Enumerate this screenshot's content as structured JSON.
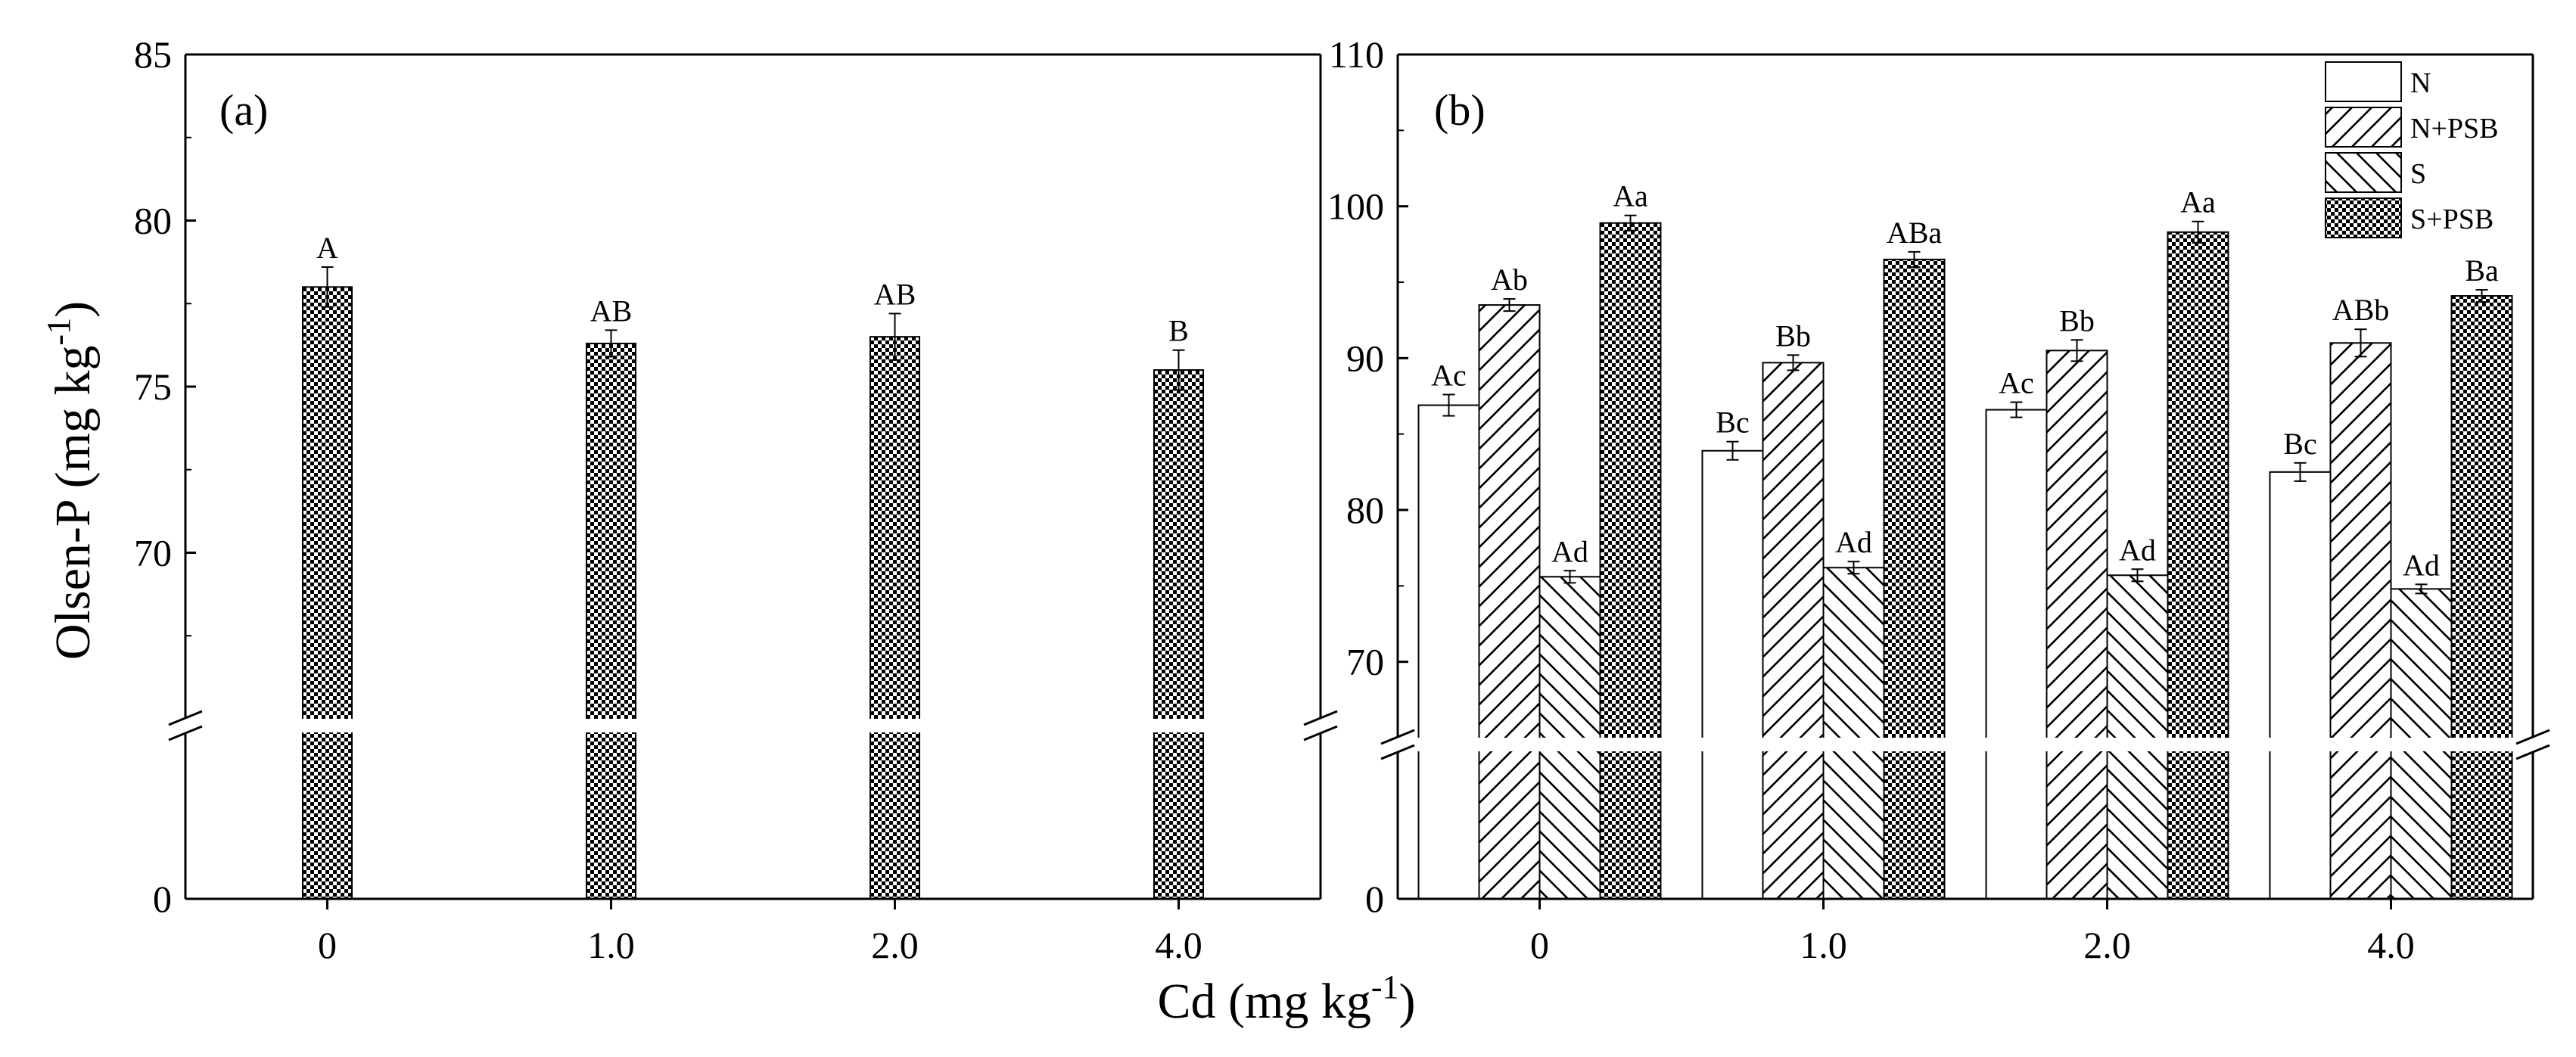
{
  "chart_data": [
    {
      "panel": "(a)",
      "type": "bar",
      "title": "",
      "xlabel": "Cd (mg kg-1)",
      "ylabel": "Olsen-P (mg kg-1)",
      "categories": [
        "0",
        "1.0",
        "2.0",
        "4.0"
      ],
      "series": [
        {
          "name": "S+PSB",
          "values": [
            78.0,
            76.3,
            76.5,
            75.5
          ],
          "errors": [
            0.6,
            0.4,
            0.7,
            0.6
          ],
          "labels": [
            "A",
            "AB",
            "AB",
            "B"
          ]
        }
      ],
      "yticks": [
        "0",
        "70",
        "75",
        "80",
        "85"
      ],
      "ylim_upper": [
        65,
        85
      ],
      "ylim_lower": [
        0,
        65
      ],
      "axis_break": true,
      "grid": false,
      "legend": "none"
    },
    {
      "panel": "(b)",
      "type": "bar",
      "title": "",
      "xlabel": "Cd (mg kg-1)",
      "ylabel": "Olsen-P (mg kg-1)",
      "categories": [
        "0",
        "1.0",
        "2.0",
        "4.0"
      ],
      "series": [
        {
          "name": "N",
          "pattern": "plain",
          "values": [
            86.9,
            83.9,
            86.6,
            82.5
          ],
          "errors": [
            0.7,
            0.6,
            0.5,
            0.6
          ],
          "labels": [
            "Ac",
            "Bc",
            "Ac",
            "Bc"
          ]
        },
        {
          "name": "N+PSB",
          "pattern": "forward-hatch",
          "values": [
            93.5,
            89.7,
            90.5,
            91.0
          ],
          "errors": [
            0.4,
            0.5,
            0.7,
            0.9
          ],
          "labels": [
            "Ab",
            "Bb",
            "Bb",
            "ABb"
          ]
        },
        {
          "name": "S",
          "pattern": "back-hatch",
          "values": [
            75.6,
            76.2,
            75.7,
            74.8
          ],
          "errors": [
            0.4,
            0.4,
            0.4,
            0.3
          ],
          "labels": [
            "Ad",
            "Ad",
            "Ad",
            "Ad"
          ]
        },
        {
          "name": "S+PSB",
          "pattern": "checker",
          "values": [
            98.9,
            96.5,
            98.3,
            94.1
          ],
          "errors": [
            0.5,
            0.5,
            0.7,
            0.4
          ],
          "labels": [
            "Aa",
            "ABa",
            "Aa",
            "Ba"
          ]
        }
      ],
      "yticks": [
        "0",
        "70",
        "80",
        "90",
        "100",
        "110"
      ],
      "ylim_upper": [
        65,
        110
      ],
      "ylim_lower": [
        0,
        65
      ],
      "axis_break": true,
      "grid": false,
      "legend": "top-right"
    }
  ],
  "figure": {
    "shared_xlabel": "Cd (mg kg",
    "shared_xlabel_sup": "-1",
    "shared_xlabel_end": ")",
    "shared_ylabel": "Olsen-P (mg kg",
    "shared_ylabel_sup": "-1",
    "shared_ylabel_end": ")"
  }
}
